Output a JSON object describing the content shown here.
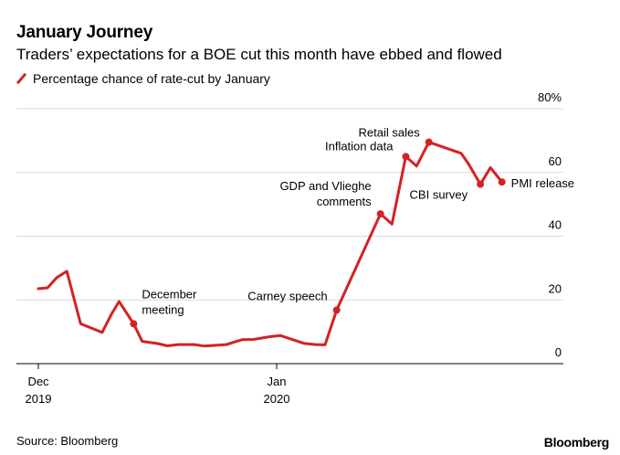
{
  "header": {
    "title": "January Journey",
    "subtitle": "Traders’ expectations for a BOE cut this month have ebbed and flowed"
  },
  "legend": {
    "label": "Percentage chance of rate-cut by January",
    "color": "#d32223"
  },
  "footer": {
    "source": "Source: Bloomberg",
    "brand": "Bloomberg"
  },
  "chart_data": {
    "type": "line",
    "title": "January Journey",
    "subtitle": "Traders’ expectations for a BOE cut this month have ebbed and flowed",
    "xlabel": "",
    "ylabel": "",
    "ylim": [
      0,
      80
    ],
    "y_ticks": [
      0,
      20,
      40,
      60,
      80
    ],
    "y_tick_labels": [
      "0",
      "20",
      "40",
      "60",
      "80%"
    ],
    "x_ticks": [
      {
        "x": 0,
        "label_line1": "Dec",
        "label_line2": "2019"
      },
      {
        "x": 31,
        "label_line1": "Jan",
        "label_line2": "2020"
      }
    ],
    "grid": true,
    "legend_position": "top-left",
    "series": [
      {
        "name": "Percentage chance of rate-cut by January",
        "color": "#d32223",
        "points": [
          [
            0,
            23.5
          ],
          [
            1.2,
            23.8
          ],
          [
            2.4,
            27
          ],
          [
            3.7,
            29
          ],
          [
            5.5,
            12.5
          ],
          [
            8.3,
            9.8
          ],
          [
            9.5,
            15.5
          ],
          [
            10.5,
            19.5
          ],
          [
            12.4,
            12.5
          ],
          [
            13.5,
            7
          ],
          [
            15.5,
            6.3
          ],
          [
            16.8,
            5.6
          ],
          [
            18.2,
            6
          ],
          [
            20.3,
            6
          ],
          [
            21.6,
            5.5
          ],
          [
            24.5,
            6
          ],
          [
            25.5,
            6.8
          ],
          [
            26.5,
            7.5
          ],
          [
            28,
            7.6
          ],
          [
            30.2,
            8.5
          ],
          [
            31.5,
            8.8
          ],
          [
            34.5,
            6.4
          ],
          [
            36,
            6
          ],
          [
            37.3,
            5.9
          ],
          [
            38.8,
            16.8
          ],
          [
            44.5,
            47
          ],
          [
            46,
            43.8
          ],
          [
            47.8,
            65
          ],
          [
            49.2,
            62
          ],
          [
            50.8,
            69.5
          ],
          [
            55,
            66
          ],
          [
            56,
            62.5
          ],
          [
            57.5,
            56.3
          ],
          [
            58.8,
            61.5
          ],
          [
            60.3,
            57
          ]
        ]
      }
    ],
    "annotations": [
      {
        "x": 12.4,
        "y": 12.5,
        "lines": [
          "December",
          "meeting"
        ]
      },
      {
        "x": 38.8,
        "y": 16.8,
        "lines": [
          "Carney speech"
        ]
      },
      {
        "x": 44.5,
        "y": 47,
        "lines": [
          "GDP and Vlieghe",
          "comments"
        ]
      },
      {
        "x": 47.8,
        "y": 65,
        "lines": [
          "Inflation data"
        ]
      },
      {
        "x": 50.8,
        "y": 69.5,
        "lines": [
          "Retail sales"
        ]
      },
      {
        "x": 57.5,
        "y": 56.3,
        "lines": [
          "CBI survey"
        ]
      },
      {
        "x": 60.3,
        "y": 57,
        "lines": [
          "PMI release"
        ]
      }
    ]
  }
}
